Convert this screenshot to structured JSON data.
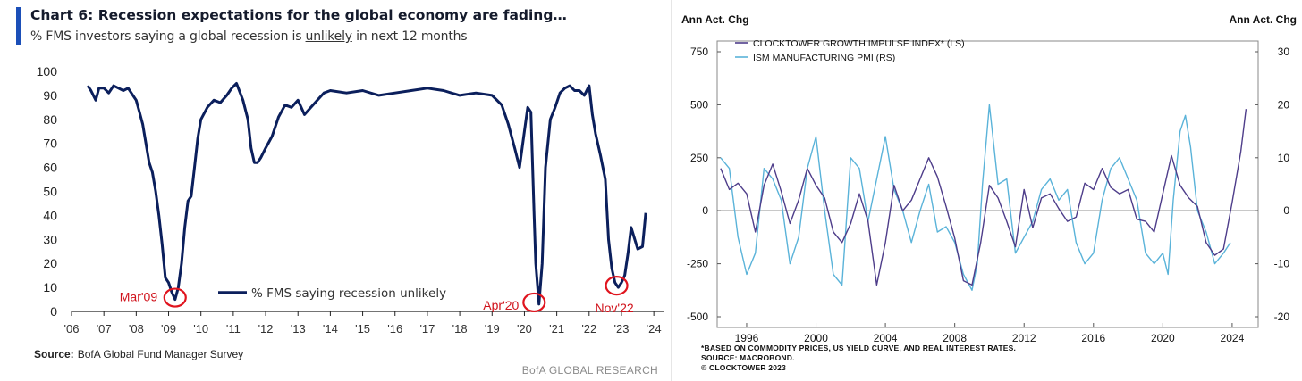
{
  "chart_data": [
    {
      "type": "line",
      "title": "Chart 6: Recession expectations for the global economy are fading…",
      "subtitle_before": "% FMS investors saying a global recession is ",
      "subtitle_emph": "unlikely",
      "subtitle_after": " in next 12 months",
      "source_label": "Source:",
      "source_text": "BofA Global Fund Manager Survey",
      "brand": "BofA GLOBAL RESEARCH",
      "xlim": [
        2006.0,
        2024.3
      ],
      "ylim": [
        0,
        100
      ],
      "x_ticks": [
        {
          "value": 2006,
          "label": "'06"
        },
        {
          "value": 2007,
          "label": "'07"
        },
        {
          "value": 2008,
          "label": "'08"
        },
        {
          "value": 2009,
          "label": "'09"
        },
        {
          "value": 2010,
          "label": "'10"
        },
        {
          "value": 2011,
          "label": "'11"
        },
        {
          "value": 2012,
          "label": "'12"
        },
        {
          "value": 2013,
          "label": "'13"
        },
        {
          "value": 2014,
          "label": "'14"
        },
        {
          "value": 2015,
          "label": "'15"
        },
        {
          "value": 2016,
          "label": "'16"
        },
        {
          "value": 2017,
          "label": "'17"
        },
        {
          "value": 2018,
          "label": "'18"
        },
        {
          "value": 2019,
          "label": "'19"
        },
        {
          "value": 2020,
          "label": "'20"
        },
        {
          "value": 2021,
          "label": "'21"
        },
        {
          "value": 2022,
          "label": "'22"
        },
        {
          "value": 2023,
          "label": "'23"
        },
        {
          "value": 2024,
          "label": "'24"
        }
      ],
      "y_ticks": [
        0,
        10,
        20,
        30,
        40,
        50,
        60,
        70,
        80,
        90,
        100
      ],
      "legend_position": "center-bottom",
      "series": [
        {
          "name": "% FMS saying recession unlikely",
          "color": "#0b1f5c",
          "x": [
            2006.5,
            2006.6,
            2006.75,
            2006.85,
            2007.0,
            2007.15,
            2007.3,
            2007.45,
            2007.6,
            2007.75,
            2007.9,
            2008.0,
            2008.1,
            2008.2,
            2008.3,
            2008.4,
            2008.5,
            2008.6,
            2008.7,
            2008.8,
            2008.9,
            2009.0,
            2009.1,
            2009.2,
            2009.3,
            2009.4,
            2009.5,
            2009.6,
            2009.7,
            2009.8,
            2009.9,
            2010.0,
            2010.2,
            2010.4,
            2010.6,
            2010.8,
            2010.95,
            2011.1,
            2011.3,
            2011.45,
            2011.55,
            2011.65,
            2011.75,
            2011.85,
            2012.0,
            2012.2,
            2012.4,
            2012.6,
            2012.8,
            2013.0,
            2013.2,
            2013.4,
            2013.6,
            2013.8,
            2014.0,
            2014.5,
            2015.0,
            2015.5,
            2016.0,
            2016.5,
            2017.0,
            2017.5,
            2018.0,
            2018.5,
            2019.0,
            2019.3,
            2019.5,
            2019.7,
            2019.85,
            2019.95,
            2020.1,
            2020.2,
            2020.3,
            2020.35,
            2020.45,
            2020.55,
            2020.65,
            2020.8,
            2020.95,
            2021.1,
            2021.25,
            2021.4,
            2021.55,
            2021.7,
            2021.85,
            2022.0,
            2022.1,
            2022.2,
            2022.35,
            2022.5,
            2022.6,
            2022.7,
            2022.8,
            2022.9,
            2023.0,
            2023.1,
            2023.2,
            2023.3,
            2023.5,
            2023.65,
            2023.75
          ],
          "values": [
            94,
            92,
            88,
            93,
            93,
            91,
            94,
            93,
            92,
            93,
            90,
            88,
            83,
            78,
            70,
            62,
            58,
            50,
            40,
            28,
            14,
            12,
            8,
            5,
            10,
            20,
            35,
            46,
            48,
            60,
            72,
            80,
            85,
            88,
            87,
            90,
            93,
            95,
            88,
            80,
            68,
            62,
            62,
            64,
            68,
            73,
            81,
            86,
            85,
            88,
            82,
            85,
            88,
            91,
            92,
            91,
            92,
            90,
            91,
            92,
            93,
            92,
            90,
            91,
            90,
            86,
            78,
            68,
            60,
            70,
            85,
            83,
            40,
            20,
            3,
            20,
            60,
            80,
            85,
            91,
            93,
            94,
            92,
            92,
            90,
            94,
            82,
            74,
            65,
            55,
            30,
            18,
            12,
            10,
            12,
            15,
            24,
            35,
            26,
            27,
            41
          ]
        }
      ],
      "annotations": [
        {
          "label": "Mar'09",
          "x": 2009.2,
          "y": 5
        },
        {
          "label": "Apr'20",
          "x": 2020.3,
          "y": 3
        },
        {
          "label": "Nov'22",
          "x": 2022.85,
          "y": 10
        }
      ]
    },
    {
      "type": "line",
      "y_left_label": "Ann Act. Chg",
      "y_right_label": "Ann Act. Chg",
      "xlim": [
        1994.3,
        2025.5
      ],
      "ylim_left": [
        -500,
        750
      ],
      "ylim_right": [
        -20,
        30
      ],
      "x_ticks": [
        1996,
        2000,
        2004,
        2008,
        2012,
        2016,
        2020,
        2024
      ],
      "y_ticks_left": [
        750,
        500,
        250,
        0,
        -250,
        -500
      ],
      "y_ticks_right": [
        30,
        20,
        10,
        0,
        -10,
        -20
      ],
      "grid": false,
      "legend_position": "top-left",
      "series": [
        {
          "name": "CLOCKTOWER GROWTH IMPULSE INDEX* (LS)",
          "axis": "left",
          "color": "#4e3d8a",
          "x": [
            1994.5,
            1995.0,
            1995.5,
            1996.0,
            1996.5,
            1997.0,
            1997.5,
            1998.0,
            1998.5,
            1999.0,
            1999.5,
            2000.0,
            2000.5,
            2001.0,
            2001.5,
            2002.0,
            2002.5,
            2003.0,
            2003.5,
            2004.0,
            2004.5,
            2005.0,
            2005.5,
            2006.0,
            2006.5,
            2007.0,
            2007.5,
            2008.0,
            2008.5,
            2009.0,
            2009.5,
            2010.0,
            2010.5,
            2011.0,
            2011.5,
            2012.0,
            2012.5,
            2013.0,
            2013.5,
            2014.0,
            2014.5,
            2015.0,
            2015.5,
            2016.0,
            2016.5,
            2017.0,
            2017.5,
            2018.0,
            2018.5,
            2019.0,
            2019.5,
            2020.0,
            2020.5,
            2021.0,
            2021.5,
            2022.0,
            2022.5,
            2023.0,
            2023.5,
            2024.0,
            2024.5,
            2024.8
          ],
          "values": [
            200,
            100,
            130,
            80,
            -100,
            120,
            220,
            90,
            -60,
            50,
            200,
            120,
            60,
            -100,
            -150,
            -60,
            80,
            -50,
            -350,
            -150,
            120,
            0,
            50,
            150,
            250,
            160,
            20,
            -130,
            -330,
            -350,
            -150,
            120,
            60,
            -50,
            -170,
            100,
            -80,
            60,
            80,
            10,
            -50,
            -30,
            130,
            100,
            200,
            110,
            80,
            100,
            -40,
            -50,
            -100,
            80,
            260,
            120,
            60,
            20,
            -150,
            -210,
            -180,
            40,
            280,
            480
          ]
        },
        {
          "name": "ISM MANUFACTURING PMI (RS)",
          "axis": "right",
          "color": "#5ab3d9",
          "x": [
            1994.5,
            1995.0,
            1995.5,
            1996.0,
            1996.5,
            1997.0,
            1997.5,
            1998.0,
            1998.5,
            1999.0,
            1999.5,
            2000.0,
            2000.5,
            2001.0,
            2001.5,
            2002.0,
            2002.5,
            2003.0,
            2003.5,
            2004.0,
            2004.5,
            2005.0,
            2005.5,
            2006.0,
            2006.5,
            2007.0,
            2007.5,
            2008.0,
            2008.5,
            2009.0,
            2009.3,
            2009.6,
            2010.0,
            2010.5,
            2011.0,
            2011.5,
            2012.0,
            2012.5,
            2013.0,
            2013.5,
            2014.0,
            2014.5,
            2015.0,
            2015.5,
            2016.0,
            2016.5,
            2017.0,
            2017.5,
            2018.0,
            2018.5,
            2019.0,
            2019.5,
            2020.0,
            2020.3,
            2020.6,
            2021.0,
            2021.3,
            2021.6,
            2022.0,
            2022.5,
            2023.0,
            2023.5,
            2023.9
          ],
          "values": [
            10,
            8,
            -5,
            -12,
            -8,
            8,
            6,
            2,
            -10,
            -5,
            8,
            14,
            0,
            -12,
            -14,
            10,
            8,
            -2,
            6,
            14,
            4,
            0,
            -6,
            0,
            5,
            -4,
            -3,
            -6,
            -12,
            -15,
            -10,
            5,
            20,
            5,
            6,
            -8,
            -5,
            -2,
            4,
            6,
            2,
            4,
            -6,
            -10,
            -8,
            2,
            8,
            10,
            6,
            2,
            -8,
            -10,
            -8,
            -12,
            2,
            15,
            18,
            12,
            0,
            -4,
            -10,
            -8,
            -6
          ]
        }
      ],
      "footnotes": [
        "*BASED ON COMMODITY PRICES, US YIELD CURVE, AND REAL INTEREST RATES.",
        "SOURCE: MACROBOND.",
        "© CLOCKTOWER 2023"
      ]
    }
  ]
}
